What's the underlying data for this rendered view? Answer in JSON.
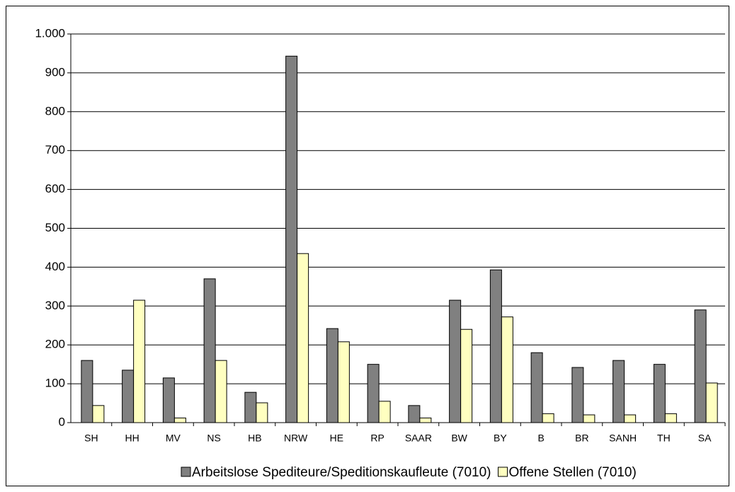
{
  "chart_data": {
    "type": "bar",
    "categories": [
      "SH",
      "HH",
      "MV",
      "NS",
      "HB",
      "NRW",
      "HE",
      "RP",
      "SAAR",
      "BW",
      "BY",
      "B",
      "BR",
      "SANH",
      "TH",
      "SA"
    ],
    "series": [
      {
        "name": "Arbeitslose Spediteure/Speditionskaufleute (7010)",
        "color": "#808080",
        "values": [
          160,
          135,
          115,
          370,
          78,
          943,
          242,
          150,
          44,
          315,
          393,
          180,
          142,
          160,
          150,
          290
        ]
      },
      {
        "name": "Offene Stellen (7010)",
        "color": "#ffffc0",
        "values": [
          44,
          315,
          12,
          160,
          51,
          435,
          208,
          55,
          12,
          240,
          272,
          23,
          20,
          20,
          23,
          102
        ]
      }
    ],
    "ylim": [
      0,
      1000
    ],
    "yticks": [
      0,
      100,
      200,
      300,
      400,
      500,
      600,
      700,
      800,
      900,
      {
        "value": 1000,
        "label": "1.000"
      }
    ],
    "grid": true,
    "legend": "bottom"
  }
}
